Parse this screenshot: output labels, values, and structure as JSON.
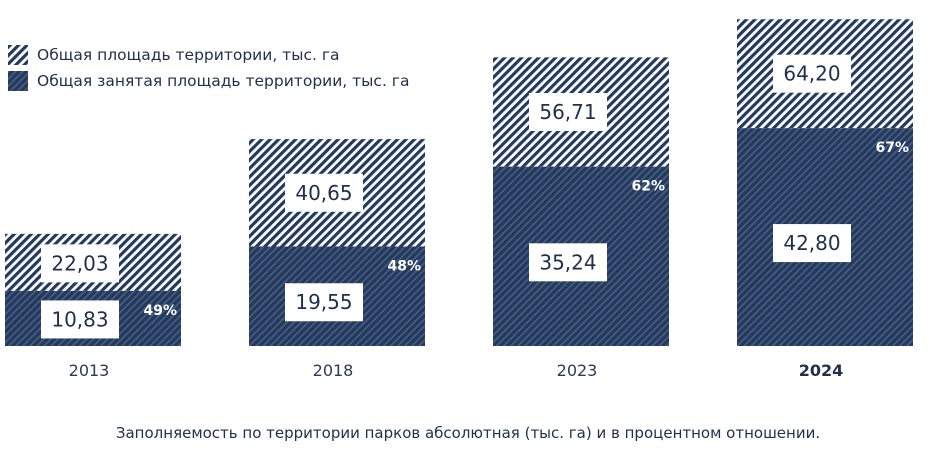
{
  "legend": {
    "total_label": "Общая площадь территории, тыс. га",
    "occupied_label": "Общая занятая площадь территории, тыс. га"
  },
  "caption": "Заполняемость по территории парков абсолютная (тыс. га) и в процентном отношении.",
  "colors": {
    "navy": "#233a5e",
    "navy_stripe": "#4a5f80",
    "light_stripe": "#233a5e",
    "text": "#1f2f4c"
  },
  "chart_data": {
    "type": "bar",
    "categories": [
      "2013",
      "2018",
      "2023",
      "2024"
    ],
    "highlight_category": "2024",
    "series": [
      {
        "name": "Общая площадь территории, тыс. га",
        "values": [
          22.03,
          40.65,
          56.71,
          64.2
        ],
        "labels": [
          "22,03",
          "40,65",
          "56,71",
          "64,20"
        ]
      },
      {
        "name": "Общая занятая площадь территории, тыс. га",
        "values": [
          10.83,
          19.55,
          35.24,
          42.8
        ],
        "labels": [
          "10,83",
          "19,55",
          "35,24",
          "42,80"
        ]
      }
    ],
    "percentages": [
      "49%",
      "48%",
      "62%",
      "67%"
    ]
  }
}
